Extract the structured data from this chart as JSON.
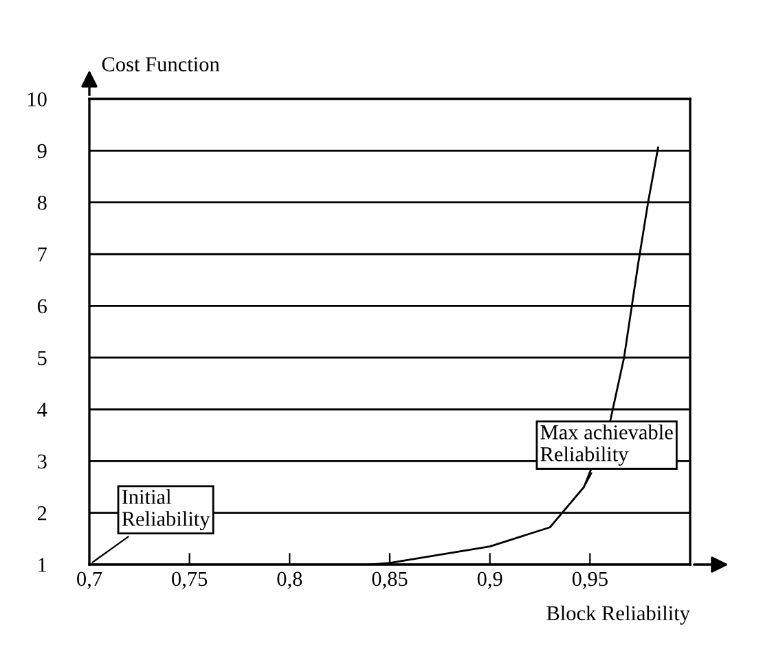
{
  "chart_data": {
    "type": "line",
    "ylabel": "Cost Function",
    "xlabel": "Block Reliability",
    "x": [
      0.84,
      0.85,
      0.9,
      0.93,
      0.947,
      0.96,
      0.967,
      0.974,
      0.979,
      0.984
    ],
    "series": [
      {
        "color": "#000000",
        "values": [
          1,
          1.03,
          1.35,
          1.72,
          2.5,
          3.76,
          5.0,
          6.8,
          8.0,
          9.06
        ]
      }
    ],
    "xlim": [
      0.7,
      1.0
    ],
    "ylim": [
      1,
      10
    ],
    "xticks": [
      {
        "value": 0.7,
        "label": "0,7"
      },
      {
        "value": 0.75,
        "label": "0,75"
      },
      {
        "value": 0.8,
        "label": "0,8"
      },
      {
        "value": 0.85,
        "label": "0,85"
      },
      {
        "value": 0.9,
        "label": "0,9"
      },
      {
        "value": 0.95,
        "label": "0,95"
      }
    ],
    "yticks": [
      1,
      2,
      3,
      4,
      5,
      6,
      7,
      8,
      9,
      10
    ],
    "grid": "y",
    "marker": "none",
    "line_style": "solid",
    "annotations": [
      "Initial\nReliability",
      {
        "text": "Max achievable\nReliability",
        "x": 0.947,
        "y": 2.5
      }
    ]
  }
}
